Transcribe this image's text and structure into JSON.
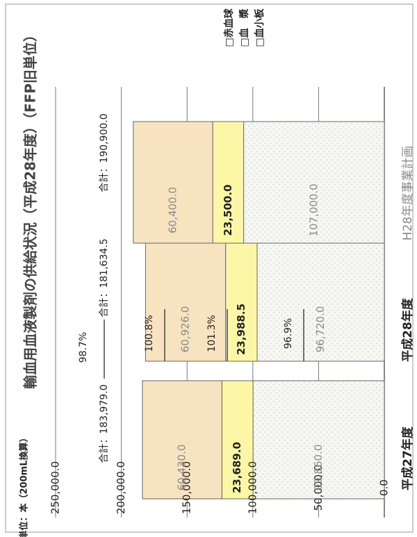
{
  "chart_data": {
    "type": "bar",
    "stacked": true,
    "orientation": "horizontal",
    "title": "輸血用血液製剤の供給状況（平成28年度）（FFP旧単位）",
    "unit_label": "単位：本（200mL換算）",
    "categories": [
      "平成27年度",
      "平成28年度",
      "H28年度事業計画"
    ],
    "series": [
      {
        "name": "血小板",
        "values": [
          99860.0,
          96720.0,
          107000.0
        ],
        "labels": [
          "99,860.0",
          "96,720.0",
          "107,000.0"
        ],
        "color": "#ecf5d9"
      },
      {
        "name": "血　漿",
        "values": [
          23689.0,
          23988.5,
          23500.0
        ],
        "labels": [
          "23,689.0",
          "23,988.5",
          "23,500.0"
        ],
        "color": "#fbf7a6"
      },
      {
        "name": "赤血球",
        "values": [
          60430.0,
          60926.0,
          60400.0
        ],
        "labels": [
          "60,430.0",
          "60,926.0",
          "60,400.0"
        ],
        "color": "#f7e3bf"
      }
    ],
    "totals": [
      "合計：183,979.0",
      "合計：181,634.5",
      "合計：190,900.0"
    ],
    "legend": [
      "赤血球",
      "血　漿",
      "血小板"
    ],
    "legend_position": "right",
    "axis": {
      "min": 0,
      "max": 250000,
      "ticks": [
        "0.0",
        "50,000.0",
        "100,000.0",
        "150,000.0",
        "200,000.0",
        "250,000.0"
      ],
      "gridlines": true
    },
    "annotations": {
      "total_ratio": "98.7%",
      "ratios": [
        "96.9%",
        "101.3%",
        "100.8%"
      ]
    }
  }
}
